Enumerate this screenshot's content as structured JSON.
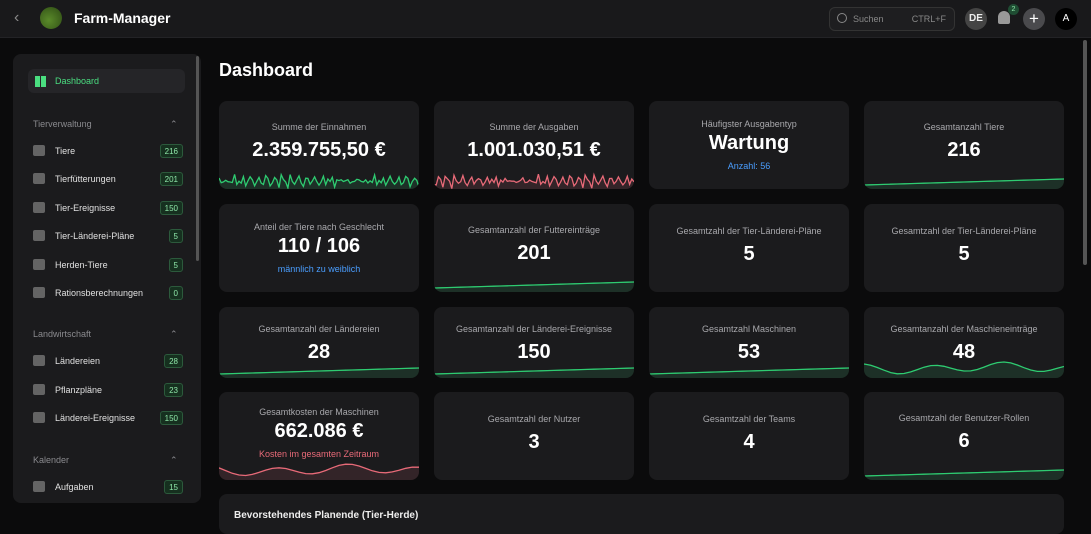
{
  "header": {
    "title": "Farm-Manager",
    "search_placeholder": "Suchen",
    "search_shortcut": "CTRL+F",
    "language": "DE",
    "notification_count": "2",
    "avatar": "A"
  },
  "sidebar": {
    "dashboard": "Dashboard",
    "sections": [
      {
        "title": "Tierverwaltung",
        "items": [
          {
            "label": "Tiere",
            "count": "216",
            "icon": "cow-icon"
          },
          {
            "label": "Tierfütterungen",
            "count": "201",
            "icon": "carrot-icon"
          },
          {
            "label": "Tier-Ereignisse",
            "count": "150",
            "icon": "history-icon"
          },
          {
            "label": "Tier-Länderei-Pläne",
            "count": "5",
            "icon": "layers-icon"
          },
          {
            "label": "Herden-Tiere",
            "count": "5",
            "icon": "herd-icon"
          },
          {
            "label": "Rationsberechnungen",
            "count": "0",
            "icon": "calculator-icon"
          }
        ]
      },
      {
        "title": "Landwirtschaft",
        "items": [
          {
            "label": "Ländereien",
            "count": "28",
            "icon": "grid-icon"
          },
          {
            "label": "Pflanzpläne",
            "count": "23",
            "icon": "sprout-icon"
          },
          {
            "label": "Länderei-Ereignisse",
            "count": "150",
            "icon": "field-event-icon"
          }
        ]
      },
      {
        "title": "Kalender",
        "items": [
          {
            "label": "Aufgaben",
            "count": "15",
            "icon": "check-circle-icon"
          }
        ]
      }
    ]
  },
  "main": {
    "title": "Dashboard",
    "cards": [
      {
        "title": "Summe der Einnahmen",
        "value": "2.359.755,50 €",
        "spark": "noisy",
        "color": "#2ecc71"
      },
      {
        "title": "Summe der Ausgaben",
        "value": "1.001.030,51 €",
        "spark": "noisy",
        "color": "#e86a78"
      },
      {
        "title": "Häufigster Ausgabentyp",
        "value": "Wartung",
        "sub": "Anzahl: 56",
        "subColor": "#4a9eff"
      },
      {
        "title": "Gesamtanzahl Tiere",
        "value": "216",
        "spark": "rising",
        "color": "#2ecc71"
      },
      {
        "title": "Anteil der Tiere nach Geschlecht",
        "value": "110 / 106",
        "sub": "männlich zu weiblich",
        "subColor": "#4a9eff"
      },
      {
        "title": "Gesamtanzahl der Futtereinträge",
        "value": "201",
        "spark": "rising",
        "color": "#2ecc71"
      },
      {
        "title": "Gesamtzahl der Tier-Länderei-Pläne",
        "value": "5"
      },
      {
        "title": "Gesamtzahl der Tier-Länderei-Pläne",
        "value": "5"
      },
      {
        "title": "Gesamtanzahl der Ländereien",
        "value": "28",
        "spark": "rising",
        "color": "#2ecc71"
      },
      {
        "title": "Gesamtanzahl der Länderei-Ereignisse",
        "value": "150",
        "spark": "rising",
        "color": "#2ecc71"
      },
      {
        "title": "Gesamtzahl Maschinen",
        "value": "53",
        "spark": "rising",
        "color": "#2ecc71"
      },
      {
        "title": "Gesamtanzahl der Maschieneinträge",
        "value": "48",
        "spark": "wave",
        "color": "#2ecc71"
      },
      {
        "title": "Gesamtkosten der Maschinen",
        "value": "662.086 €",
        "sub": "Kosten im gesamten Zeitraum",
        "subColor": "#e86a78",
        "spark": "wave",
        "color": "#e86a78"
      },
      {
        "title": "Gesamtzahl der Nutzer",
        "value": "3"
      },
      {
        "title": "Gesamtzahl der Teams",
        "value": "4"
      },
      {
        "title": "Gesamtzahl der Benutzer-Rollen",
        "value": "6",
        "spark": "rising",
        "color": "#2ecc71"
      }
    ],
    "bottom_panel_title": "Bevorstehendes Planende (Tier-Herde)"
  }
}
